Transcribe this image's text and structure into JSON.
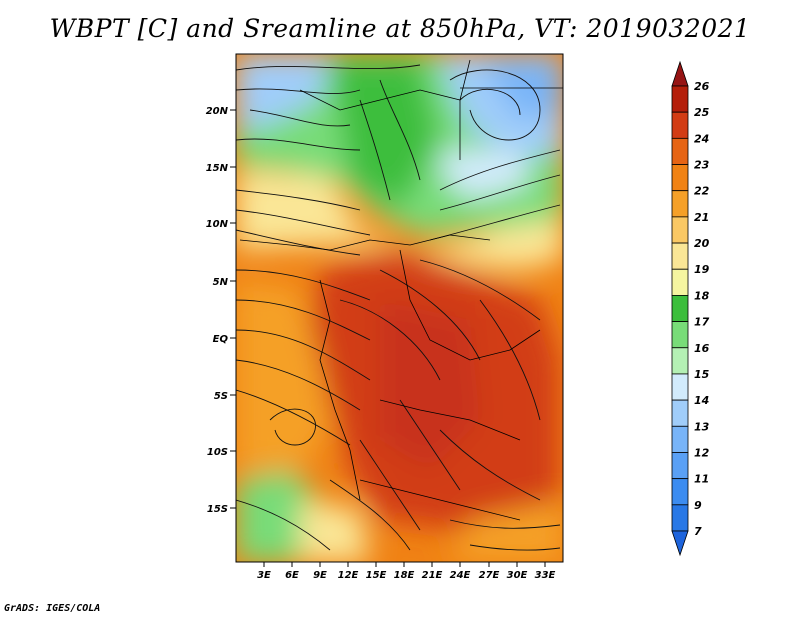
{
  "title": "WBPT [C] and Sreamline at 850hPa, VT: 2019032021",
  "credit": "GrADS: IGES/COLA",
  "map": {
    "lat_labels": [
      "20N",
      "15N",
      "10N",
      "5N",
      "EQ",
      "5S",
      "10S",
      "15S"
    ],
    "lon_labels": [
      "3E",
      "6E",
      "9E",
      "12E",
      "15E",
      "18E",
      "21E",
      "24E",
      "27E",
      "30E",
      "33E"
    ]
  },
  "colorbar": {
    "labels": [
      "7",
      "9",
      "11",
      "12",
      "13",
      "14",
      "15",
      "16",
      "17",
      "18",
      "19",
      "20",
      "21",
      "22",
      "23",
      "24",
      "25",
      "26"
    ],
    "colors": [
      "#1e64dc",
      "#2878e6",
      "#3c8cf0",
      "#5aa0f5",
      "#78b4f8",
      "#a0cdfa",
      "#d2ebfc",
      "#b4f0b4",
      "#78dc78",
      "#3cbe3c",
      "#f5f5a0",
      "#fae696",
      "#fac864",
      "#f5a028",
      "#f08214",
      "#e66414",
      "#d23c14",
      "#b41e0a",
      "#961414"
    ]
  }
}
